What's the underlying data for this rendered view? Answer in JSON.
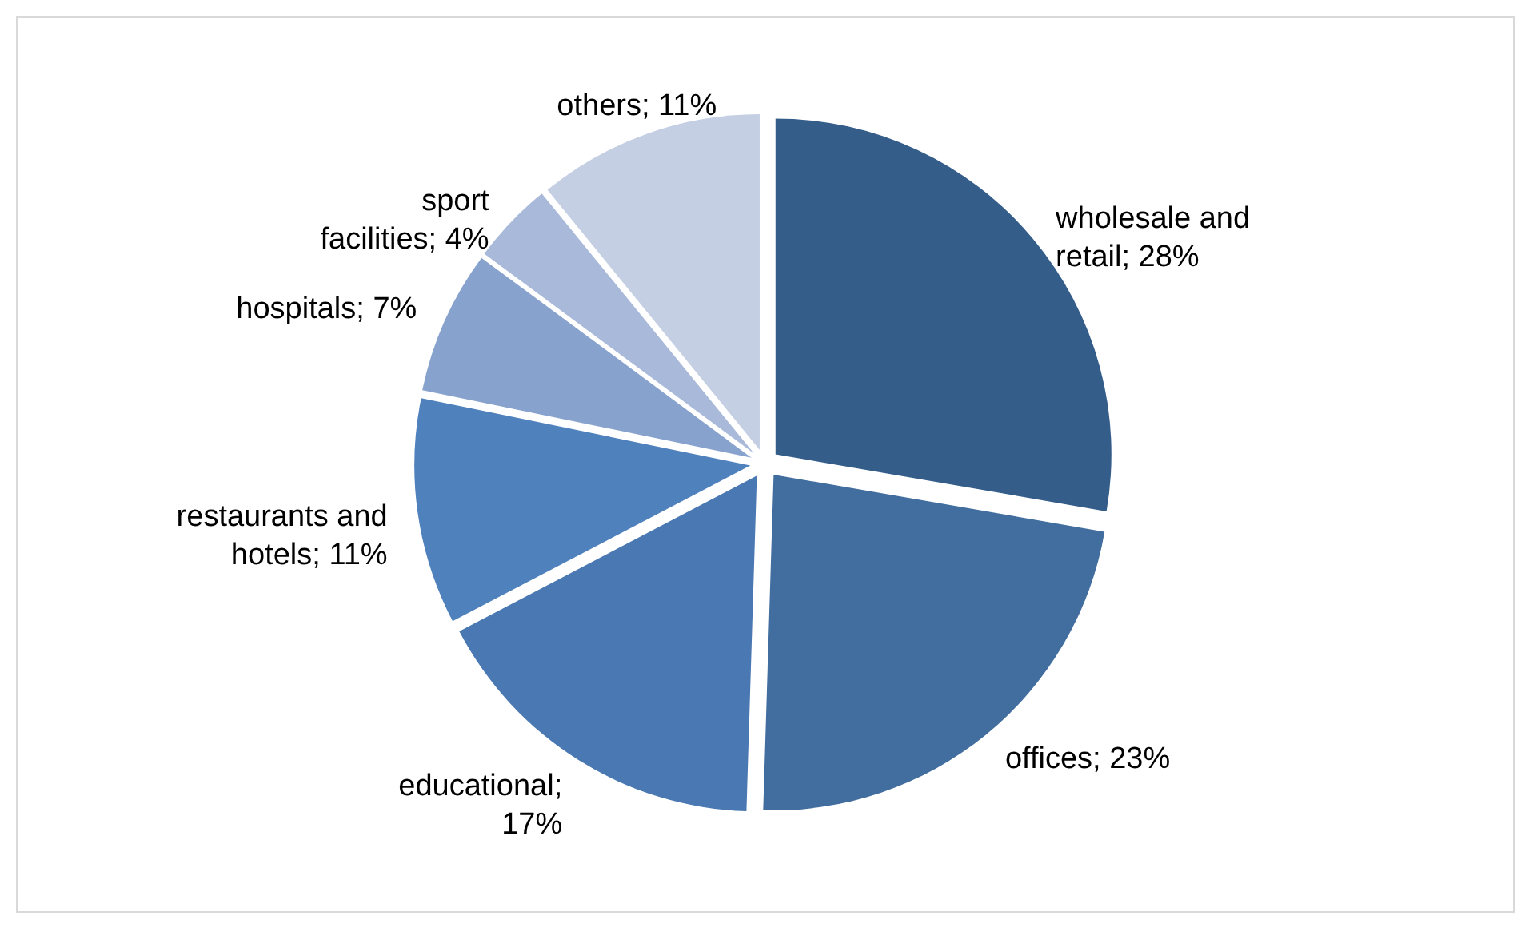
{
  "chart_data": {
    "type": "pie",
    "categories": [
      "wholesale and retail; 28%",
      "offices; 23%",
      "educational; 17%",
      "restaurants and hotels; 11%",
      "hospitals; 7%",
      "sport facilities; 4%",
      "others; 11%"
    ],
    "values": [
      28,
      23,
      17,
      11,
      7,
      4,
      11
    ],
    "colors": [
      "#355d8a",
      "#416d9f",
      "#4a78b2",
      "#4f81bd",
      "#88a2ce",
      "#a9b9d9",
      "#c4cfe3"
    ]
  }
}
